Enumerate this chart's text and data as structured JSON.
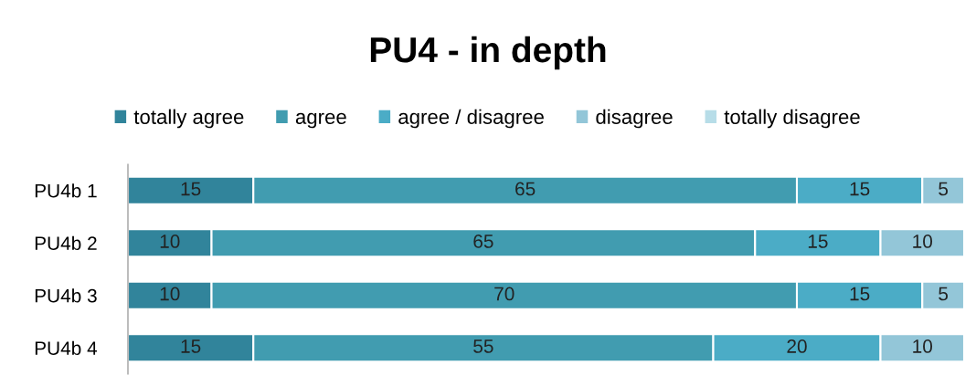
{
  "chart_data": {
    "type": "bar",
    "title": "PU4 - in depth",
    "orientation": "horizontal",
    "stacked": true,
    "data_labels": true,
    "legend": "top",
    "grid": false,
    "categories": [
      "PU4b 1",
      "PU4b 2",
      "PU4b 3",
      "PU4b 4"
    ],
    "series": [
      {
        "name": "totally agree",
        "color": "#31849b",
        "values": [
          15,
          10,
          10,
          15
        ]
      },
      {
        "name": "agree",
        "color": "#419cb0",
        "values": [
          65,
          65,
          70,
          55
        ]
      },
      {
        "name": "agree / disagree",
        "color": "#4bacc6",
        "values": [
          15,
          15,
          15,
          20
        ]
      },
      {
        "name": "disagree",
        "color": "#93c6d8",
        "values": [
          5,
          10,
          5,
          10
        ]
      },
      {
        "name": "totally disagree",
        "color": "#b7dde8",
        "values": [
          null,
          null,
          null,
          null
        ]
      }
    ]
  }
}
